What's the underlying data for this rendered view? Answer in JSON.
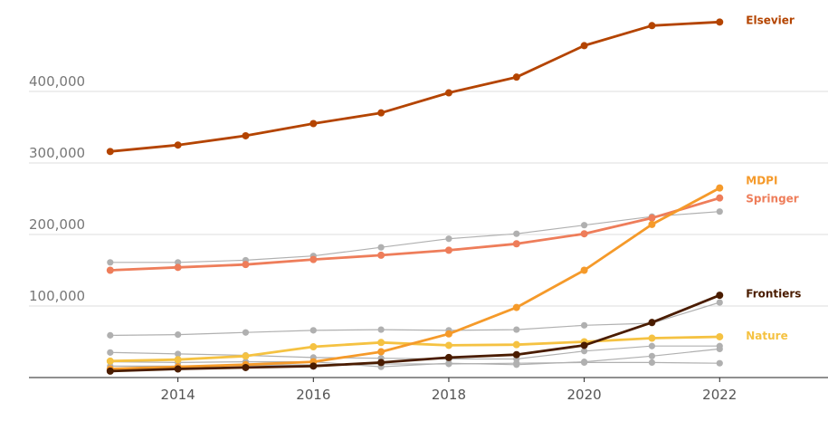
{
  "chart_data": {
    "type": "line",
    "x": [
      2013,
      2014,
      2015,
      2016,
      2017,
      2018,
      2019,
      2020,
      2021,
      2022
    ],
    "xticks": [
      "2014",
      "2016",
      "2018",
      "2020",
      "2022"
    ],
    "xtick_values": [
      2014,
      2016,
      2018,
      2020,
      2022
    ],
    "xlim": [
      2011.8,
      2023.6
    ],
    "yticks": [
      "100,000",
      "200,000",
      "300,000",
      "400,000"
    ],
    "ytick_values": [
      100000,
      200000,
      300000,
      400000
    ],
    "ylim": [
      0,
      505000
    ],
    "grid": "horizontal",
    "legend": "labels at line ends",
    "series": [
      {
        "id": "other-1",
        "name": "",
        "color": "#b0b0b0",
        "width": 1.2,
        "values": [
          161000,
          161000,
          164000,
          170000,
          182000,
          194000,
          201000,
          213000,
          225000,
          232000
        ]
      },
      {
        "id": "other-2",
        "name": "",
        "color": "#b0b0b0",
        "width": 1.2,
        "values": [
          59000,
          60000,
          63000,
          66000,
          67000,
          66000,
          67000,
          73000,
          76000,
          105000
        ]
      },
      {
        "id": "other-3",
        "name": "",
        "color": "#b0b0b0",
        "width": 1.2,
        "values": [
          35000,
          33000,
          31000,
          28000,
          27000,
          26000,
          26000,
          37000,
          44000,
          44000
        ]
      },
      {
        "id": "other-4",
        "name": "",
        "color": "#b0b0b0",
        "width": 1.2,
        "values": [
          22000,
          21000,
          22000,
          22000,
          15000,
          20000,
          18000,
          22000,
          30000,
          40000
        ]
      },
      {
        "id": "other-5",
        "name": "",
        "color": "#b0b0b0",
        "width": 1.2,
        "values": [
          16000,
          16000,
          17000,
          18000,
          19000,
          19000,
          20000,
          21000,
          21000,
          20000
        ]
      },
      {
        "id": "nature",
        "name": "Nature",
        "color": "#f5c242",
        "width": 2.8,
        "values": [
          23000,
          25000,
          30000,
          43000,
          49000,
          45000,
          46000,
          50000,
          55000,
          57000
        ]
      },
      {
        "id": "springer",
        "name": "Springer",
        "color": "#ee7d5a",
        "width": 2.8,
        "values": [
          150000,
          154000,
          158000,
          165000,
          171000,
          178000,
          187000,
          201000,
          223000,
          251000
        ]
      },
      {
        "id": "mdpi",
        "name": "MDPI",
        "color": "#f59a2a",
        "width": 2.8,
        "values": [
          12000,
          15000,
          18000,
          22000,
          36000,
          61000,
          98000,
          150000,
          214000,
          265000
        ]
      },
      {
        "id": "frontiers",
        "name": "Frontiers",
        "color": "#4a1c00",
        "width": 2.8,
        "values": [
          9000,
          12000,
          14000,
          16000,
          21000,
          28000,
          32000,
          45000,
          77000,
          115000
        ]
      },
      {
        "id": "elsevier",
        "name": "Elsevier",
        "color": "#b44400",
        "width": 2.8,
        "values": [
          316000,
          325000,
          338000,
          355000,
          370000,
          398000,
          420000,
          464000,
          492000,
          497000
        ]
      }
    ],
    "labels": [
      {
        "series": "elsevier",
        "text": "Elsevier",
        "color": "#b44400",
        "value": 499000
      },
      {
        "series": "mdpi",
        "text": "MDPI",
        "color": "#f59a2a",
        "value": 275000
      },
      {
        "series": "springer",
        "text": "Springer",
        "color": "#ee7d5a",
        "value": 250000
      },
      {
        "series": "frontiers",
        "text": "Frontiers",
        "color": "#4a1c00",
        "value": 117000
      },
      {
        "series": "nature",
        "text": "Nature",
        "color": "#f5c242",
        "value": 58000
      }
    ]
  }
}
